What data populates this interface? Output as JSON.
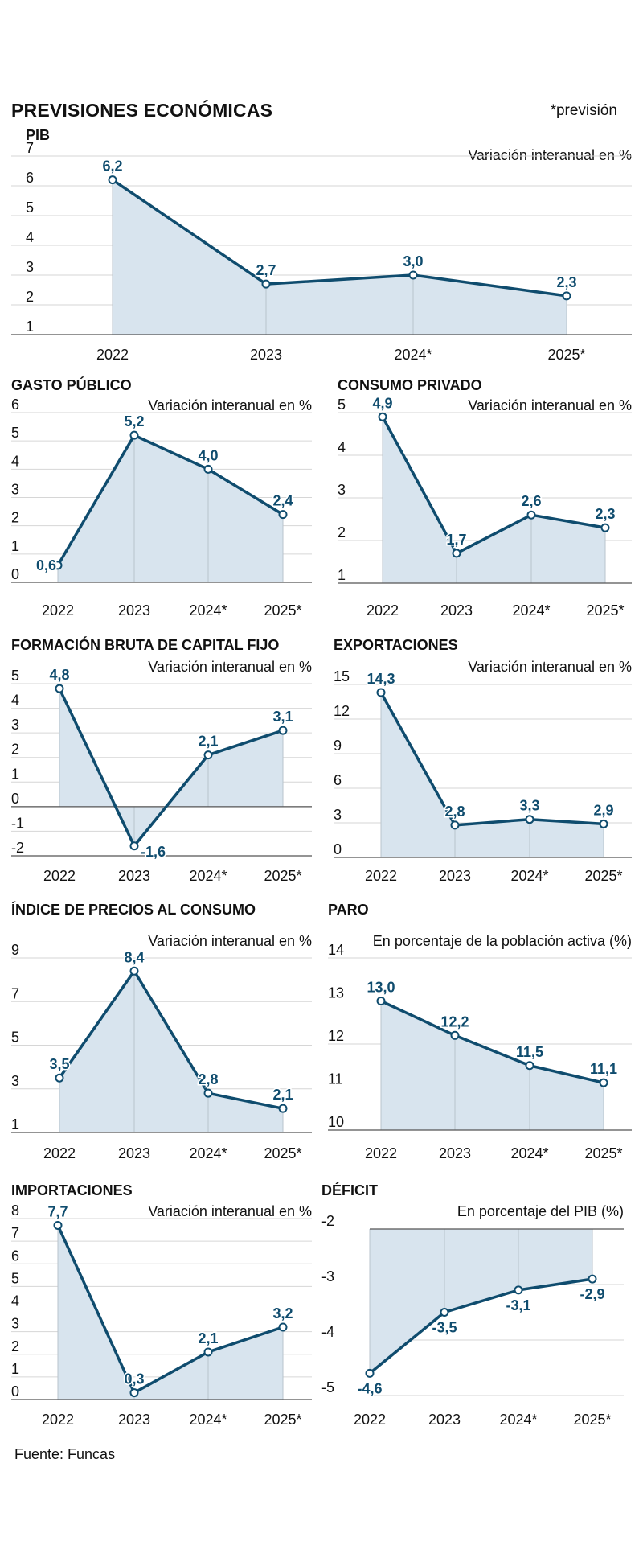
{
  "header": {
    "title": "PREVISIONES ECONÓMICAS",
    "note": "*previsión"
  },
  "source": "Fuente: Funcas",
  "colors": {
    "line": "#0f4c6e",
    "area": "#d8e4ee"
  },
  "chart_data": [
    {
      "id": "pib",
      "type": "line",
      "title": "PIB",
      "subtitle": "Variación interanual en %",
      "categories": [
        "2022",
        "2023",
        "2024*",
        "2025*"
      ],
      "values": [
        6.2,
        2.7,
        3.0,
        2.3
      ],
      "labels": [
        "6,2",
        "2,7",
        "3,0",
        "2,3"
      ],
      "ylim": [
        1,
        7
      ],
      "yticks": [
        "1",
        "2",
        "3",
        "4",
        "5",
        "6",
        "7"
      ]
    },
    {
      "id": "gasto",
      "type": "line",
      "title": "GASTO PÚBLICO",
      "subtitle": "Variación interanual en %",
      "categories": [
        "2022",
        "2023",
        "2024*",
        "2025*"
      ],
      "values": [
        0.6,
        5.2,
        4.0,
        2.4
      ],
      "labels": [
        "0,6",
        "5,2",
        "4,0",
        "2,4"
      ],
      "ylim": [
        0,
        6
      ],
      "yticks": [
        "0",
        "1",
        "2",
        "3",
        "4",
        "5",
        "6"
      ]
    },
    {
      "id": "consumo",
      "type": "line",
      "title": "CONSUMO PRIVADO",
      "subtitle": "Variación interanual en %",
      "categories": [
        "2022",
        "2023",
        "2024*",
        "2025*"
      ],
      "values": [
        4.9,
        1.7,
        2.6,
        2.3
      ],
      "labels": [
        "4,9",
        "1,7",
        "2,6",
        "2,3"
      ],
      "ylim": [
        1,
        5
      ],
      "yticks": [
        "1",
        "2",
        "3",
        "4",
        "5"
      ]
    },
    {
      "id": "fbcf",
      "type": "line",
      "title": "FORMACIÓN BRUTA DE CAPITAL FIJO",
      "subtitle": "Variación interanual en %",
      "categories": [
        "2022",
        "2023",
        "2024*",
        "2025*"
      ],
      "values": [
        4.8,
        -1.6,
        2.1,
        3.1
      ],
      "labels": [
        "4,8",
        "-1,6",
        "2,1",
        "3,1"
      ],
      "ylim": [
        -2,
        5
      ],
      "yticks": [
        "-2",
        "-1",
        "0",
        "1",
        "2",
        "3",
        "4",
        "5"
      ]
    },
    {
      "id": "export",
      "type": "line",
      "title": "EXPORTACIONES",
      "subtitle": "Variación interanual en %",
      "categories": [
        "2022",
        "2023",
        "2024*",
        "2025*"
      ],
      "values": [
        14.3,
        2.8,
        3.3,
        2.9
      ],
      "labels": [
        "14,3",
        "2,8",
        "3,3",
        "2,9"
      ],
      "ylim": [
        0,
        15
      ],
      "yticks": [
        "0",
        "3",
        "6",
        "9",
        "12",
        "15"
      ]
    },
    {
      "id": "ipc",
      "type": "line",
      "title": "ÍNDICE DE PRECIOS AL CONSUMO",
      "subtitle": "Variación interanual en %",
      "categories": [
        "2022",
        "2023",
        "2024*",
        "2025*"
      ],
      "values": [
        3.5,
        8.4,
        2.8,
        2.1
      ],
      "labels": [
        "3,5",
        "8,4",
        "2,8",
        "2,1"
      ],
      "ylim": [
        1,
        9
      ],
      "yticks": [
        "1",
        "3",
        "5",
        "7",
        "9"
      ]
    },
    {
      "id": "paro",
      "type": "line",
      "title": "PARO",
      "subtitle": "En porcentaje de la población activa (%)",
      "categories": [
        "2022",
        "2023",
        "2024*",
        "2025*"
      ],
      "values": [
        13.0,
        12.2,
        11.5,
        11.1
      ],
      "labels": [
        "13,0",
        "12,2",
        "11,5",
        "11,1"
      ],
      "ylim": [
        10,
        14
      ],
      "yticks": [
        "10",
        "11",
        "12",
        "13",
        "14"
      ]
    },
    {
      "id": "import",
      "type": "line",
      "title": "IMPORTACIONES",
      "subtitle": "Variación interanual en %",
      "categories": [
        "2022",
        "2023",
        "2024*",
        "2025*"
      ],
      "values": [
        7.7,
        0.3,
        2.1,
        3.2
      ],
      "labels": [
        "7,7",
        "0,3",
        "2,1",
        "3,2"
      ],
      "ylim": [
        0,
        8
      ],
      "yticks": [
        "0",
        "1",
        "2",
        "3",
        "4",
        "5",
        "6",
        "7",
        "8"
      ]
    },
    {
      "id": "deficit",
      "type": "line",
      "title": "DÉFICIT",
      "subtitle": "En porcentaje del PIB (%)",
      "categories": [
        "2022",
        "2023",
        "2024*",
        "2025*"
      ],
      "values": [
        -4.6,
        -3.5,
        -3.1,
        -2.9
      ],
      "labels": [
        "-4,6",
        "-3,5",
        "-3,1",
        "-2,9"
      ],
      "ylim": [
        -5,
        -2
      ],
      "yticks": [
        "-5",
        "-4",
        "-3",
        "-2"
      ],
      "baseline": "top"
    }
  ]
}
